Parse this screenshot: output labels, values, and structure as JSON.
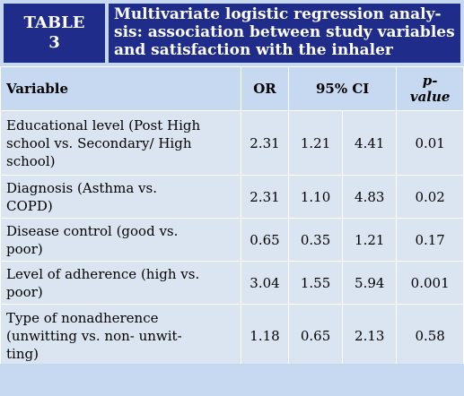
{
  "table_label_line1": "TABLE",
  "table_label_line2": "3",
  "title": "Multivariate logistic regression analy-sis: association between study variables and satisfaction with the inhaler",
  "title_lines": [
    "Multivariate logistic regression analy-",
    "sis: association between study variables",
    "and satisfaction with the inhaler"
  ],
  "headers": {
    "variable": "Variable",
    "or": "OR",
    "ci": "95% CI",
    "p_line1": "p-",
    "p_line2": "value"
  },
  "rows": [
    {
      "variable_lines": [
        "Educational level (Post High",
        "school vs. Secondary/ High",
        "school)"
      ],
      "or": "2.31",
      "ci_low": "1.21",
      "ci_high": "4.41",
      "p": "0.01"
    },
    {
      "variable_lines": [
        "Diagnosis (Asthma vs.",
        "COPD)"
      ],
      "or": "2.31",
      "ci_low": "1.10",
      "ci_high": "4.83",
      "p": "0.02"
    },
    {
      "variable_lines": [
        "Disease control (good vs.",
        "poor)"
      ],
      "or": "0.65",
      "ci_low": "0.35",
      "ci_high": "1.21",
      "p": "0.17"
    },
    {
      "variable_lines": [
        "Level of adherence (high vs.",
        "poor)"
      ],
      "or": "3.04",
      "ci_low": "1.55",
      "ci_high": "5.94",
      "p": "0.001"
    },
    {
      "variable_lines": [
        "Type of nonadherence",
        "(unwitting vs. non- unwit-",
        "ting)"
      ],
      "or": "1.18",
      "ci_low": "0.65",
      "ci_high": "2.13",
      "p": "0.58"
    }
  ],
  "colors": {
    "header_bg": "#1f2c8a",
    "header_text": "#ffffff",
    "table_bg": "#c6d9f1",
    "row_bg": "#dbe5f1"
  }
}
